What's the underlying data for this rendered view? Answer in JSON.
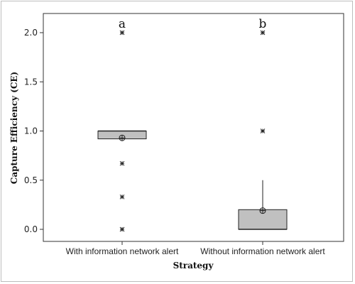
{
  "chart_data": {
    "type": "boxplot",
    "xlabel": "Strategy",
    "ylabel": "Capture Efficiency (CE)",
    "ylim": [
      -0.12,
      2.1
    ],
    "yticks": [
      "0.0",
      "0.5",
      "1.0",
      "1.5",
      "2.0"
    ],
    "grid": false,
    "categories": [
      "With information network alert",
      "Without information network alert"
    ],
    "boxes": [
      {
        "category": "With information network alert",
        "group_letter": "a",
        "q1": 0.92,
        "median": 1.0,
        "q3": 1.0,
        "whisker_low": 0.92,
        "whisker_high": 1.0,
        "mean": 0.93,
        "outliers": [
          2.0,
          0.67,
          0.33,
          0.0
        ]
      },
      {
        "category": "Without information network alert",
        "group_letter": "b",
        "q1": 0.0,
        "median": 0.0,
        "q3": 0.2,
        "whisker_low": 0.0,
        "whisker_high": 0.5,
        "mean": 0.19,
        "outliers": [
          2.0,
          1.0
        ]
      }
    ],
    "colors": {
      "box_fill": "#c0c0c0",
      "line": "#222222"
    }
  }
}
